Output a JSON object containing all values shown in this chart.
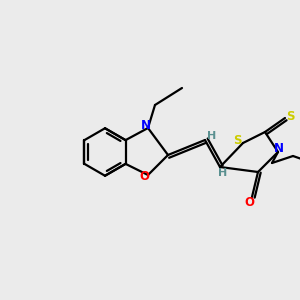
{
  "bg_color": "#EBEBEB",
  "bond_color": "#000000",
  "N_color": "#0000FF",
  "O_color": "#FF0000",
  "S_color": "#CCCC00",
  "H_color": "#5A9090",
  "line_width": 1.6,
  "figsize": [
    3.0,
    3.0
  ],
  "dpi": 100,
  "xlim": [
    0,
    12
  ],
  "ylim": [
    0,
    12
  ]
}
